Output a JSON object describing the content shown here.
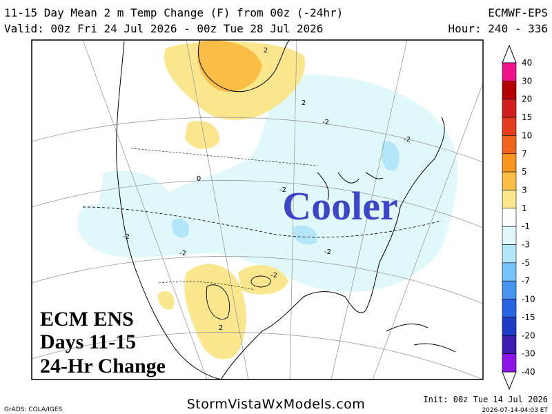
{
  "header": {
    "title": "11-15 Day Mean 2 m Temp Change (F) from 00z (-24hr)",
    "model": "ECMWF-EPS",
    "valid": "Valid: 00z Fri 24 Jul 2026 - 00z Tue 28 Jul 2026",
    "hour": "Hour: 240 - 336"
  },
  "colorbar": {
    "levels": [
      40,
      30,
      20,
      15,
      10,
      7,
      5,
      3,
      1,
      -1,
      -3,
      -5,
      -7,
      -10,
      -15,
      -20,
      -30,
      -40
    ],
    "colors": [
      "#f0148c",
      "#b40000",
      "#d21e1e",
      "#e63c1e",
      "#f0641e",
      "#f5961e",
      "#fabe46",
      "#fae68c",
      "#ffffff",
      "#e1f8fa",
      "#b4e6fa",
      "#78c3fa",
      "#4696f0",
      "#2864e6",
      "#1e3cc8",
      "#3c1eb4",
      "#8c14e6"
    ]
  },
  "map": {
    "contour_labels": [
      "2",
      "-2",
      "0",
      "-2",
      "-2",
      "-2",
      "2",
      "-2",
      "-2",
      "-2",
      "2"
    ]
  },
  "annotations": {
    "big": "Cooler",
    "line1": "ECM ENS",
    "line2": "Days 11-15",
    "line3": "24-Hr Change"
  },
  "footer": {
    "software": "GrADS: COLA/IGES",
    "site": "StormVistaWxModels.com",
    "init": "Init: 00z Tue 14 Jul 2026",
    "stamp": "2026-07-14-04:03 ET"
  }
}
